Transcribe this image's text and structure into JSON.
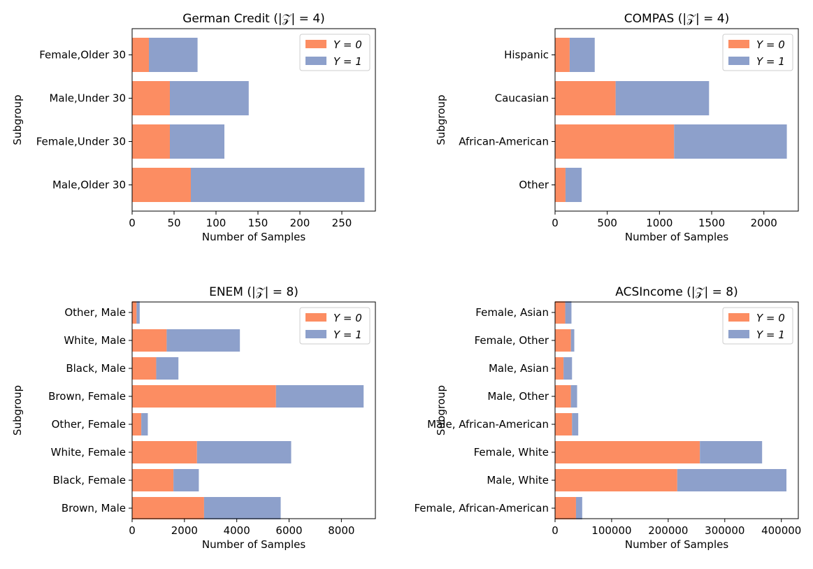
{
  "colors": {
    "y0": "#fc8d62",
    "y1": "#8da0cb"
  },
  "chart_data": [
    {
      "type": "bar",
      "orientation": "horizontal",
      "stacked": true,
      "title": "German Credit  (|𝒵| = 4)",
      "xlabel": "Number of Samples",
      "ylabel": "Subgroup",
      "xlim": [
        0,
        290
      ],
      "xticks": [
        0,
        50,
        100,
        150,
        200,
        250
      ],
      "xtick_labels": [
        "0",
        "50",
        "100",
        "150",
        "200",
        "250"
      ],
      "legend": {
        "position": "top-right",
        "labels": [
          "Y = 0",
          "Y = 1"
        ]
      },
      "categories": [
        "Male,Older 30",
        "Female,Under 30",
        "Male,Under 30",
        "Female,Older 30"
      ],
      "series": [
        {
          "name": "Y = 0",
          "values": [
            70,
            45,
            45,
            20
          ]
        },
        {
          "name": "Y = 1",
          "values": [
            207,
            65,
            94,
            58
          ]
        }
      ]
    },
    {
      "type": "bar",
      "orientation": "horizontal",
      "stacked": true,
      "title": "COMPAS  (|𝒵| = 4)",
      "xlabel": "Number of Samples",
      "ylabel": "Subgroup",
      "xlim": [
        0,
        2330
      ],
      "xticks": [
        0,
        500,
        1000,
        1500,
        2000
      ],
      "xtick_labels": [
        "0",
        "500",
        "1000",
        "1500",
        "2000"
      ],
      "legend": {
        "position": "top-right",
        "labels": [
          "Y = 0",
          "Y = 1"
        ]
      },
      "categories": [
        "Other",
        "African-American",
        "Caucasian",
        "Hispanic"
      ],
      "series": [
        {
          "name": "Y = 0",
          "values": [
            100,
            1140,
            580,
            140
          ]
        },
        {
          "name": "Y = 1",
          "values": [
            155,
            1080,
            895,
            240
          ]
        }
      ]
    },
    {
      "type": "bar",
      "orientation": "horizontal",
      "stacked": true,
      "title": "ENEM  (|𝒵| = 8)",
      "xlabel": "Number of Samples",
      "ylabel": "Subgroup",
      "xlim": [
        0,
        9300
      ],
      "xticks": [
        0,
        2000,
        4000,
        6000,
        8000
      ],
      "xtick_labels": [
        "0",
        "2000",
        "4000",
        "6000",
        "8000"
      ],
      "legend": {
        "position": "top-right",
        "labels": [
          "Y = 0",
          "Y = 1"
        ]
      },
      "categories": [
        "Brown, Male",
        "Black, Female",
        "White, Female",
        "Other, Female",
        "Brown, Female",
        "Black, Male",
        "White, Male",
        "Other, Male"
      ],
      "series": [
        {
          "name": "Y = 0",
          "values": [
            2750,
            1580,
            2480,
            350,
            5500,
            920,
            1320,
            170
          ]
        },
        {
          "name": "Y = 1",
          "values": [
            2930,
            970,
            3600,
            250,
            3350,
            850,
            2800,
            120
          ]
        }
      ]
    },
    {
      "type": "bar",
      "orientation": "horizontal",
      "stacked": true,
      "title": "ACSIncome  (|𝒵| = 8)",
      "xlabel": "Number of Samples",
      "ylabel": "Subgroup",
      "xlim": [
        0,
        430000
      ],
      "xticks": [
        0,
        100000,
        200000,
        300000,
        400000
      ],
      "xtick_labels": [
        "0",
        "100000",
        "200000",
        "300000",
        "400000"
      ],
      "legend": {
        "position": "top-right",
        "labels": [
          "Y = 0",
          "Y = 1"
        ]
      },
      "categories": [
        "Female, African-American",
        "Male, White",
        "Female, White",
        "Male, African-American",
        "Male, Other",
        "Male, Asian",
        "Female, Other",
        "Female, Asian"
      ],
      "series": [
        {
          "name": "Y = 0",
          "values": [
            37000,
            216000,
            256000,
            30000,
            28000,
            15000,
            28000,
            18000
          ]
        },
        {
          "name": "Y = 1",
          "values": [
            11000,
            193000,
            110000,
            11000,
            11000,
            15000,
            6000,
            11000
          ]
        }
      ]
    }
  ]
}
